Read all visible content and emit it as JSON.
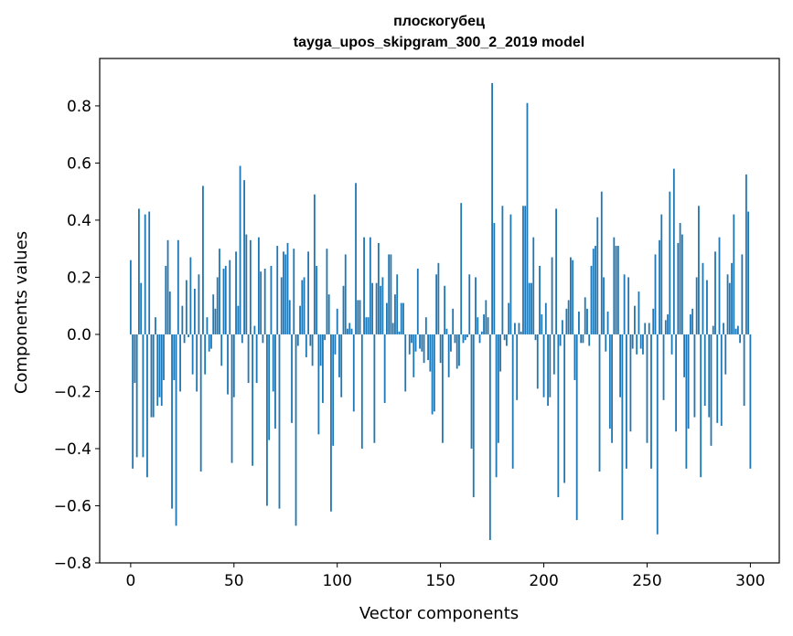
{
  "chart_data": {
    "type": "bar",
    "title": "плоскогубец",
    "subtitle": "tayga_upos_skipgram_300_2_2019 model",
    "xlabel": "Vector components",
    "ylabel": "Components values",
    "xlim": [
      -15,
      314
    ],
    "ylim": [
      -0.8,
      0.966
    ],
    "xticks": [
      0,
      50,
      100,
      150,
      200,
      250,
      300
    ],
    "xtick_labels": [
      "0",
      "50",
      "100",
      "150",
      "200",
      "250",
      "300"
    ],
    "yticks": [
      -0.8,
      -0.6,
      -0.4,
      -0.2,
      0.0,
      0.2,
      0.4,
      0.6,
      0.8
    ],
    "ytick_labels": [
      "−0.8",
      "−0.6",
      "−0.4",
      "−0.2",
      "0.0",
      "0.2",
      "0.4",
      "0.6",
      "0.8"
    ],
    "grid": false,
    "color": "#1f77b4",
    "values": [
      0.26,
      -0.47,
      -0.17,
      -0.43,
      0.44,
      0.18,
      -0.43,
      0.42,
      -0.5,
      0.43,
      -0.29,
      -0.29,
      0.06,
      -0.25,
      -0.22,
      -0.25,
      -0.16,
      0.24,
      0.33,
      0.15,
      -0.61,
      -0.16,
      -0.67,
      0.33,
      -0.2,
      0.1,
      -0.03,
      0.19,
      -0.01,
      0.27,
      -0.14,
      0.16,
      -0.2,
      0.21,
      -0.48,
      0.52,
      -0.14,
      0.06,
      -0.06,
      -0.05,
      0.14,
      0.09,
      0.2,
      0.3,
      -0.11,
      0.23,
      0.24,
      -0.21,
      0.26,
      -0.45,
      -0.22,
      0.29,
      0.1,
      0.59,
      -0.03,
      0.54,
      0.35,
      -0.17,
      0.33,
      -0.46,
      0.03,
      -0.17,
      0.34,
      0.22,
      -0.03,
      0.23,
      -0.6,
      -0.37,
      0.24,
      -0.2,
      -0.33,
      0.31,
      -0.61,
      0.2,
      0.29,
      0.28,
      0.32,
      0.12,
      -0.31,
      0.3,
      -0.67,
      -0.04,
      0.1,
      0.19,
      0.2,
      -0.08,
      0.29,
      -0.04,
      -0.11,
      0.49,
      0.24,
      -0.35,
      -0.11,
      -0.24,
      -0.02,
      0.3,
      0.14,
      -0.62,
      -0.39,
      -0.07,
      0.09,
      -0.15,
      -0.22,
      0.17,
      0.28,
      0.02,
      0.04,
      0.02,
      -0.27,
      0.53,
      0.12,
      0.12,
      -0.4,
      0.34,
      0.06,
      0.06,
      0.34,
      0.18,
      -0.38,
      0.18,
      0.32,
      0.17,
      0.2,
      -0.24,
      0.11,
      0.28,
      0.28,
      0.04,
      0.14,
      0.21,
      0.01,
      0.11,
      0.11,
      -0.2,
      0.0,
      -0.07,
      -0.03,
      -0.15,
      -0.06,
      0.23,
      -0.05,
      -0.06,
      -0.1,
      0.06,
      -0.09,
      -0.13,
      -0.28,
      -0.27,
      0.21,
      0.25,
      -0.1,
      -0.38,
      0.17,
      0.02,
      -0.15,
      -0.06,
      0.09,
      -0.03,
      -0.12,
      -0.11,
      0.46,
      -0.03,
      -0.02,
      -0.01,
      0.21,
      -0.4,
      -0.57,
      0.2,
      0.06,
      -0.03,
      0.01,
      0.07,
      0.12,
      0.06,
      -0.72,
      0.88,
      0.39,
      -0.5,
      -0.38,
      -0.13,
      0.45,
      -0.02,
      -0.04,
      0.11,
      0.42,
      -0.47,
      0.04,
      -0.23,
      0.04,
      0.01,
      0.45,
      0.45,
      0.81,
      0.18,
      0.18,
      0.34,
      -0.02,
      -0.19,
      0.24,
      0.07,
      -0.22,
      0.11,
      -0.25,
      -0.22,
      0.27,
      -0.14,
      0.44,
      -0.57,
      -0.04,
      0.05,
      -0.52,
      0.09,
      0.12,
      0.27,
      0.26,
      -0.16,
      -0.65,
      0.08,
      -0.03,
      -0.03,
      0.13,
      0.09,
      -0.04,
      0.24,
      0.3,
      0.31,
      0.41,
      -0.48,
      0.5,
      0.2,
      -0.06,
      0.08,
      -0.33,
      -0.38,
      0.34,
      0.31,
      0.31,
      -0.22,
      -0.65,
      0.21,
      -0.47,
      0.2,
      -0.34,
      -0.05,
      0.1,
      -0.07,
      0.15,
      -0.05,
      -0.07,
      0.04,
      -0.38,
      0.04,
      -0.47,
      0.09,
      0.28,
      -0.7,
      0.33,
      0.42,
      -0.23,
      0.05,
      0.07,
      0.5,
      -0.07,
      0.58,
      -0.34,
      0.32,
      0.39,
      0.35,
      -0.15,
      -0.47,
      -0.33,
      0.07,
      0.09,
      -0.29,
      0.2,
      0.45,
      -0.5,
      0.25,
      -0.25,
      0.19,
      -0.29,
      -0.39,
      0.03,
      0.29,
      -0.31,
      0.34,
      -0.32,
      0.04,
      -0.14,
      0.21,
      0.18,
      0.25,
      0.42,
      0.02,
      0.03,
      -0.03,
      0.28,
      -0.25,
      0.56,
      0.43,
      -0.47
    ]
  }
}
